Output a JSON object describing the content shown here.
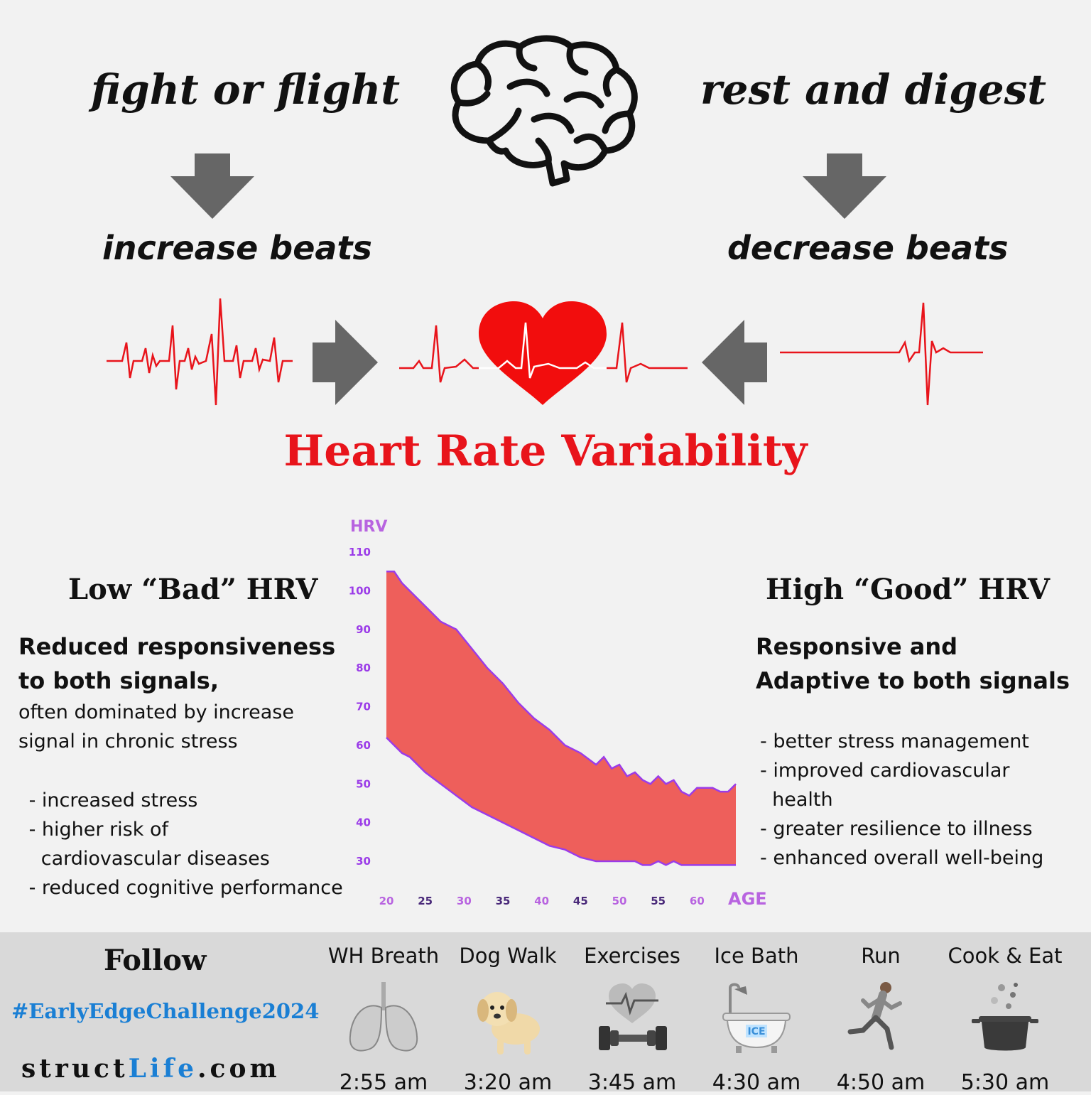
{
  "top": {
    "left_title": "fight or flight",
    "right_title": "rest and digest",
    "left_effect": "increase beats",
    "right_effect": "decrease beats"
  },
  "main_title": "Heart Rate Variability",
  "colors": {
    "accent_red": "#e8141b",
    "chart_fill": "#ee5f5b",
    "chart_edge": "#9b3ce8",
    "axis_purple": "#b864e0",
    "hashtag_blue": "#1a7fd4"
  },
  "low": {
    "heading": "Low “Bad” HRV",
    "subheading_1": "Reduced responsiveness",
    "subheading_2": "to both signals,",
    "desc_1": "often dominated by increase",
    "desc_2": "signal in chronic stress",
    "items": [
      " - increased stress",
      " - higher risk of",
      "   cardiovascular diseases",
      " - reduced cognitive performance"
    ]
  },
  "high": {
    "heading": "High “Good” HRV",
    "subheading_1": "Responsive and",
    "subheading_2": "Adaptive to both signals",
    "items": [
      "- better stress management",
      "- improved cardiovascular",
      "  health",
      "- greater resilience to illness",
      "- enhanced overall well-being"
    ]
  },
  "chart_data": {
    "type": "area",
    "ylabel": "HRV",
    "xlabel": "AGE",
    "ylim": [
      30,
      110
    ],
    "xlim": [
      20,
      65
    ],
    "y_ticks": [
      "110",
      "100",
      "90",
      "80",
      "70",
      "60",
      "50",
      "40",
      "30"
    ],
    "x_ticks": [
      "20",
      "25",
      "30",
      "35",
      "40",
      "45",
      "50",
      "55",
      "60"
    ],
    "x": [
      20,
      21,
      22,
      23,
      25,
      27,
      29,
      31,
      33,
      35,
      37,
      39,
      41,
      43,
      45,
      47,
      48,
      49,
      50,
      51,
      52,
      53,
      54,
      55,
      56,
      57,
      58,
      59,
      60,
      61,
      62,
      63,
      64,
      65
    ],
    "upper": [
      105,
      105,
      102,
      100,
      96,
      92,
      90,
      85,
      80,
      76,
      71,
      67,
      64,
      60,
      58,
      55,
      57,
      54,
      55,
      52,
      53,
      51,
      50,
      52,
      50,
      51,
      48,
      47,
      49,
      49,
      49,
      48,
      48,
      50
    ],
    "lower": [
      62,
      60,
      58,
      57,
      53,
      50,
      47,
      44,
      42,
      40,
      38,
      36,
      34,
      33,
      31,
      30,
      30,
      30,
      30,
      30,
      30,
      29,
      29,
      30,
      29,
      30,
      29,
      29,
      29,
      29,
      29,
      29,
      29,
      29
    ]
  },
  "footer": {
    "follow": "Follow",
    "hashtag": "#EarlyEdgeChallenge2024",
    "site_a": "struct",
    "site_b": "Life",
    "site_c": ".com",
    "activities": [
      {
        "label": "WH Breath",
        "time": "2:55 am",
        "icon": "lungs-icon"
      },
      {
        "label": "Dog Walk",
        "time": "3:20 am",
        "icon": "puppy-icon"
      },
      {
        "label": "Exercises",
        "time": "3:45 am",
        "icon": "dumbbell-icon"
      },
      {
        "label": "Ice Bath",
        "time": "4:30 am",
        "icon": "ice-bath-icon"
      },
      {
        "label": "Run",
        "time": "4:50 am",
        "icon": "runner-icon"
      },
      {
        "label": "Cook & Eat",
        "time": "5:30 am",
        "icon": "cooking-pot-icon"
      }
    ]
  }
}
